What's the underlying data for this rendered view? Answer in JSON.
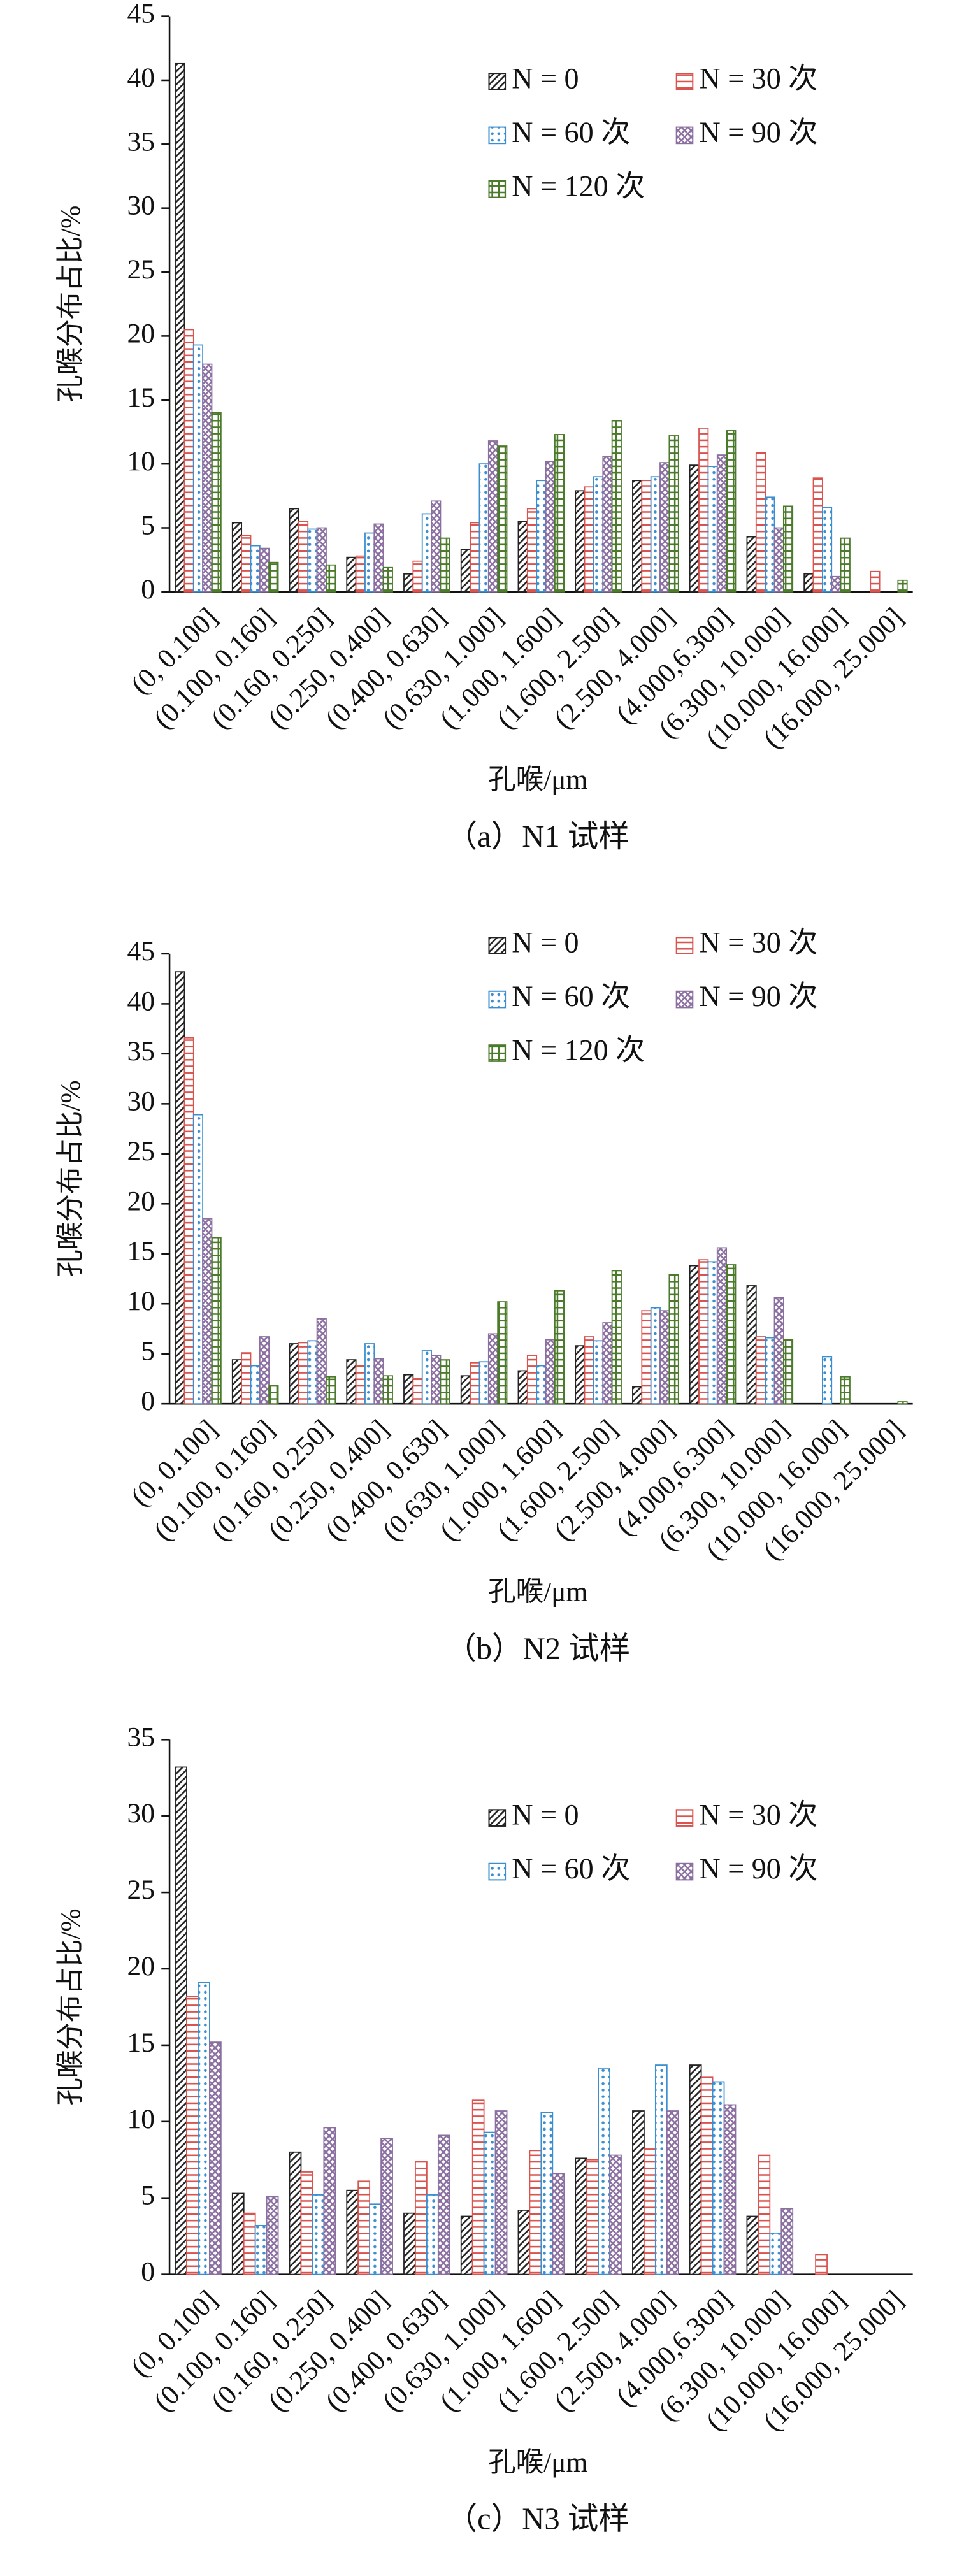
{
  "chart_data": [
    {
      "type": "bar",
      "caption": "（a）N1 试样",
      "y_label": "孔喉分布占比/%",
      "x_label": "孔喉/μm",
      "categories": [
        "(0, 0.100]",
        "(0.100, 0.160]",
        "(0.160, 0.250]",
        "(0.250, 0.400]",
        "(0.400, 0.630]",
        "(0.630, 1.000]",
        "(1.000, 1.600]",
        "(1.600, 2.500]",
        "(2.500, 4.000]",
        "(4.000,6.300]",
        "(6.300, 10.000]",
        "(10.000, 16.000]",
        "(16.000, 25.000]"
      ],
      "ylim": [
        0,
        45
      ],
      "yticks": [
        0,
        5,
        10,
        15,
        20,
        25,
        30,
        35,
        40,
        45
      ],
      "series": [
        {
          "name": "N = 0",
          "color": "#222222",
          "pattern": "diagonal",
          "values": [
            41.3,
            5.4,
            6.5,
            2.7,
            1.4,
            3.3,
            5.5,
            7.9,
            8.7,
            9.9,
            4.3,
            1.4,
            0
          ]
        },
        {
          "name": "N = 30 次",
          "color": "#d9534f",
          "pattern": "horizontal",
          "values": [
            20.5,
            4.4,
            5.5,
            2.8,
            2.4,
            5.4,
            6.5,
            8.2,
            8.7,
            12.8,
            10.9,
            8.9,
            1.6
          ]
        },
        {
          "name": "N = 60 次",
          "color": "#3b8fd0",
          "pattern": "dots",
          "values": [
            19.3,
            3.6,
            4.9,
            4.6,
            6.1,
            10.0,
            8.7,
            9.0,
            9.0,
            9.8,
            7.4,
            6.6,
            0
          ]
        },
        {
          "name": "N = 90 次",
          "color": "#8a6fa0",
          "pattern": "diamond",
          "values": [
            17.8,
            3.4,
            5.0,
            5.3,
            7.1,
            11.8,
            10.2,
            10.6,
            10.1,
            10.7,
            5.0,
            1.2,
            0
          ]
        },
        {
          "name": "N = 120 次",
          "color": "#4b7a2a",
          "pattern": "crosshatch",
          "values": [
            14.0,
            2.3,
            2.1,
            1.9,
            4.2,
            11.4,
            12.3,
            13.4,
            12.2,
            12.6,
            6.7,
            4.2,
            0.9
          ]
        }
      ]
    },
    {
      "type": "bar",
      "caption": "（b）N2 试样",
      "y_label": "孔喉分布占比/%",
      "x_label": "孔喉/μm",
      "categories": [
        "(0, 0.100]",
        "(0.100, 0.160]",
        "(0.160, 0.250]",
        "(0.250, 0.400]",
        "(0.400, 0.630]",
        "(0.630, 1.000]",
        "(1.000, 1.600]",
        "(1.600, 2.500]",
        "(2.500, 4.000]",
        "(4.000,6.300]",
        "(6.300, 10.000]",
        "(10.000, 16.000]",
        "(16.000, 25.000]"
      ],
      "ylim": [
        0,
        45
      ],
      "yticks": [
        0,
        5,
        10,
        15,
        20,
        25,
        30,
        35,
        40,
        45
      ],
      "series": [
        {
          "name": "N = 0",
          "color": "#222222",
          "pattern": "diagonal",
          "values": [
            43.2,
            4.4,
            6.0,
            4.4,
            2.9,
            2.8,
            3.3,
            5.8,
            1.7,
            13.8,
            11.8,
            0,
            0
          ]
        },
        {
          "name": "N = 30 次",
          "color": "#d9534f",
          "pattern": "horizontal",
          "values": [
            36.6,
            5.1,
            6.1,
            3.8,
            2.5,
            4.1,
            4.8,
            6.7,
            9.3,
            14.4,
            6.7,
            0,
            0
          ]
        },
        {
          "name": "N = 60 次",
          "color": "#3b8fd0",
          "pattern": "dots",
          "values": [
            28.9,
            3.8,
            6.3,
            6.0,
            5.3,
            4.2,
            3.8,
            6.3,
            9.6,
            14.2,
            6.6,
            4.7,
            0
          ]
        },
        {
          "name": "N = 90 次",
          "color": "#8a6fa0",
          "pattern": "diamond",
          "values": [
            18.5,
            6.7,
            8.5,
            4.5,
            4.8,
            7.0,
            6.4,
            8.1,
            9.3,
            15.6,
            10.6,
            0,
            0
          ]
        },
        {
          "name": "N = 120 次",
          "color": "#4b7a2a",
          "pattern": "crosshatch",
          "values": [
            16.6,
            1.8,
            2.7,
            2.8,
            4.4,
            10.2,
            11.3,
            13.3,
            12.9,
            13.9,
            6.4,
            2.7,
            0.2
          ]
        }
      ]
    },
    {
      "type": "bar",
      "caption": "（c）N3 试样",
      "y_label": "孔喉分布占比/%",
      "x_label": "孔喉/μm",
      "categories": [
        "(0, 0.100]",
        "(0.100, 0.160]",
        "(0.160, 0.250]",
        "(0.250, 0.400]",
        "(0.400, 0.630]",
        "(0.630, 1.000]",
        "(1.000, 1.600]",
        "(1.600, 2.500]",
        "(2.500, 4.000]",
        "(4.000,6.300]",
        "(6.300, 10.000]",
        "(10.000, 16.000]",
        "(16.000, 25.000]"
      ],
      "ylim": [
        0,
        35
      ],
      "yticks": [
        0,
        5,
        10,
        15,
        20,
        25,
        30,
        35
      ],
      "series": [
        {
          "name": "N = 0",
          "color": "#222222",
          "pattern": "diagonal",
          "values": [
            33.2,
            5.3,
            8.0,
            5.5,
            4.0,
            3.8,
            4.2,
            7.6,
            10.7,
            13.7,
            3.8,
            0,
            0
          ]
        },
        {
          "name": "N = 30 次",
          "color": "#d9534f",
          "pattern": "horizontal",
          "values": [
            18.2,
            4.0,
            6.7,
            6.1,
            7.4,
            11.4,
            8.1,
            7.5,
            8.2,
            12.9,
            7.8,
            1.3,
            0
          ]
        },
        {
          "name": "N = 60 次",
          "color": "#3b8fd0",
          "pattern": "dots",
          "values": [
            19.1,
            3.2,
            5.2,
            4.6,
            5.2,
            9.3,
            10.6,
            13.5,
            13.7,
            12.6,
            2.7,
            0,
            0
          ]
        },
        {
          "name": "N = 90 次",
          "color": "#8a6fa0",
          "pattern": "diamond",
          "values": [
            15.2,
            5.1,
            9.6,
            8.9,
            9.1,
            10.7,
            6.6,
            7.8,
            10.7,
            11.1,
            4.3,
            0,
            0
          ]
        }
      ]
    }
  ]
}
